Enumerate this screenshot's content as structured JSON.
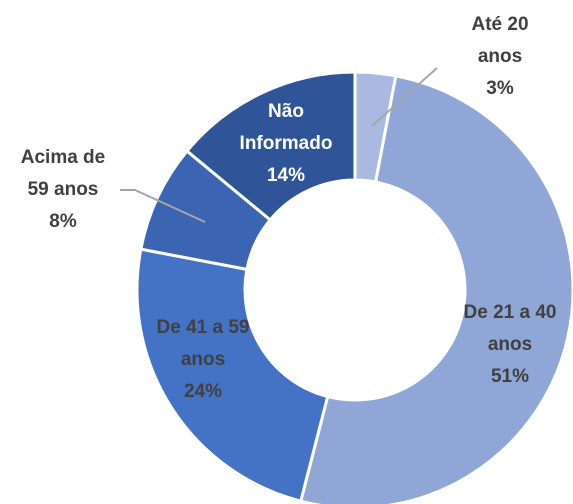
{
  "chart_data": {
    "type": "donut",
    "categories": [
      "Até 20 anos",
      "De 21 a 40 anos",
      "De 41 a 59 anos",
      "Acima de 59 anos",
      "Não Informado"
    ],
    "values": [
      3,
      51,
      24,
      8,
      14
    ],
    "value_labels": [
      "3%",
      "51%",
      "24%",
      "8%",
      "14%"
    ],
    "colors": [
      "#a9b9e1",
      "#8fa6d7",
      "#4472c4",
      "#3b65b3",
      "#2f5497"
    ]
  }
}
